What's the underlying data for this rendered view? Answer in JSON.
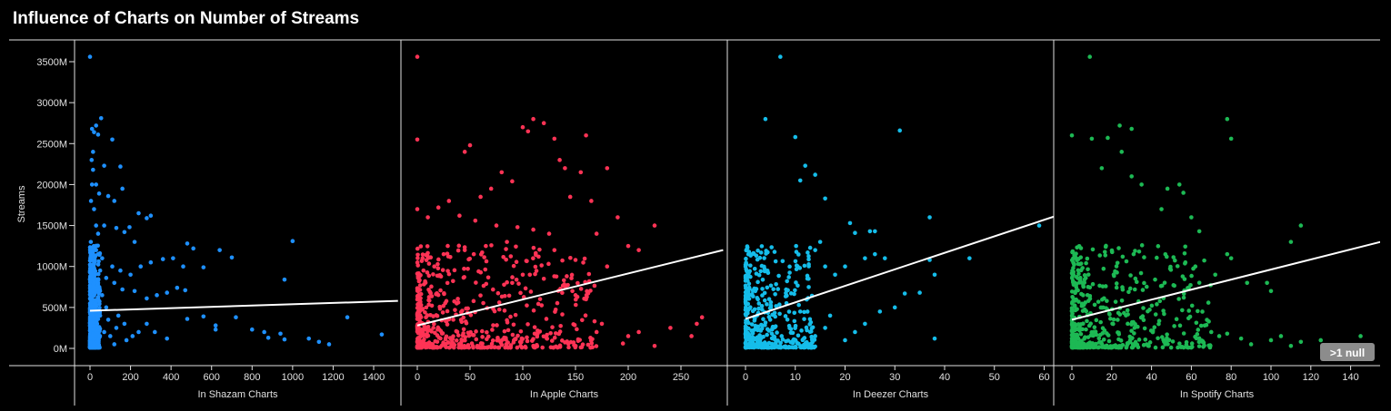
{
  "chart_data": {
    "type": "scatter",
    "title": "Influence of Charts on Number of Streams",
    "ylabel": "Streams",
    "ylim": [
      0,
      3600000000
    ],
    "yticks": [
      0,
      500000000,
      1000000000,
      1500000000,
      2000000000,
      2500000000,
      3000000000,
      3500000000
    ],
    "ytick_labels": [
      "0M",
      "500M",
      "1000M",
      "1500M",
      "2000M",
      "2500M",
      "3000M",
      "3500M"
    ],
    "grid": false,
    "null_badge": ">1 null",
    "panels": [
      {
        "xlabel": "In Shazam Charts",
        "color": "#1e90ff",
        "xticks": [
          0,
          200,
          400,
          600,
          800,
          1000,
          1200,
          1400
        ],
        "trend": {
          "x": [
            0,
            1520
          ],
          "y": [
            460000000,
            580000000
          ]
        },
        "points": [
          [
            0,
            3560
          ],
          [
            10,
            2680
          ],
          [
            20,
            2640
          ],
          [
            30,
            2720
          ],
          [
            40,
            2610
          ],
          [
            55,
            2810
          ],
          [
            110,
            2550
          ],
          [
            70,
            2230
          ],
          [
            150,
            2220
          ],
          [
            15,
            2180
          ],
          [
            30,
            2000
          ],
          [
            45,
            1890
          ],
          [
            90,
            1860
          ],
          [
            160,
            1950
          ],
          [
            120,
            1800
          ],
          [
            240,
            1650
          ],
          [
            300,
            1620
          ],
          [
            280,
            1590
          ],
          [
            195,
            1480
          ],
          [
            130,
            1470
          ],
          [
            170,
            1420
          ],
          [
            70,
            1500
          ],
          [
            40,
            1400
          ],
          [
            220,
            1300
          ],
          [
            480,
            1280
          ],
          [
            1000,
            1310
          ],
          [
            510,
            1220
          ],
          [
            640,
            1200
          ],
          [
            700,
            1110
          ],
          [
            410,
            1100
          ],
          [
            360,
            1090
          ],
          [
            460,
            1000
          ],
          [
            560,
            990
          ],
          [
            300,
            1050
          ],
          [
            250,
            1000
          ],
          [
            200,
            900
          ],
          [
            150,
            950
          ],
          [
            110,
            1000
          ],
          [
            60,
            1100
          ],
          [
            30,
            1200
          ],
          [
            960,
            840
          ],
          [
            430,
            740
          ],
          [
            470,
            710
          ],
          [
            380,
            680
          ],
          [
            330,
            650
          ],
          [
            280,
            610
          ],
          [
            220,
            700
          ],
          [
            160,
            720
          ],
          [
            120,
            800
          ],
          [
            80,
            860
          ],
          [
            50,
            950
          ],
          [
            560,
            390
          ],
          [
            480,
            360
          ],
          [
            620,
            280
          ],
          [
            800,
            230
          ],
          [
            860,
            200
          ],
          [
            940,
            180
          ],
          [
            1080,
            120
          ],
          [
            1130,
            80
          ],
          [
            1180,
            50
          ],
          [
            1270,
            380
          ],
          [
            1440,
            170
          ],
          [
            880,
            130
          ],
          [
            960,
            110
          ],
          [
            620,
            230
          ],
          [
            720,
            380
          ],
          [
            380,
            120
          ],
          [
            320,
            200
          ],
          [
            280,
            300
          ],
          [
            240,
            200
          ],
          [
            210,
            150
          ],
          [
            180,
            100
          ],
          [
            170,
            300
          ],
          [
            140,
            400
          ],
          [
            130,
            250
          ],
          [
            120,
            50
          ],
          [
            100,
            150
          ],
          [
            90,
            350
          ],
          [
            80,
            500
          ],
          [
            70,
            200
          ],
          [
            60,
            650
          ],
          [
            50,
            400
          ],
          [
            40,
            800
          ],
          [
            35,
            300
          ],
          [
            30,
            1500
          ],
          [
            25,
            550
          ],
          [
            20,
            1700
          ],
          [
            15,
            2400
          ],
          [
            12,
            1000
          ],
          [
            10,
            2000
          ],
          [
            8,
            2300
          ],
          [
            5,
            1800
          ],
          [
            4,
            1300
          ],
          [
            3,
            1100
          ],
          [
            2,
            600
          ],
          [
            1,
            250
          ]
        ],
        "dense": {
          "xmax": 50,
          "count": 520
        }
      },
      {
        "xlabel": "In Apple Charts",
        "color": "#ff3355",
        "xticks": [
          0,
          50,
          100,
          150,
          200,
          250
        ],
        "trend": {
          "x": [
            0,
            290
          ],
          "y": [
            280000000,
            1200000000
          ]
        },
        "points": [
          [
            0,
            3560
          ],
          [
            0,
            2550
          ],
          [
            45,
            2400
          ],
          [
            50,
            2480
          ],
          [
            100,
            2700
          ],
          [
            110,
            2800
          ],
          [
            120,
            2750
          ],
          [
            105,
            2650
          ],
          [
            130,
            2560
          ],
          [
            135,
            2300
          ],
          [
            140,
            2200
          ],
          [
            180,
            2200
          ],
          [
            160,
            2600
          ],
          [
            155,
            2150
          ],
          [
            145,
            1850
          ],
          [
            165,
            1800
          ],
          [
            190,
            1600
          ],
          [
            225,
            1500
          ],
          [
            170,
            1400
          ],
          [
            200,
            1250
          ],
          [
            210,
            1200
          ],
          [
            180,
            1000
          ],
          [
            150,
            1080
          ],
          [
            130,
            1200
          ],
          [
            115,
            1120
          ],
          [
            270,
            380
          ],
          [
            265,
            300
          ],
          [
            260,
            150
          ],
          [
            240,
            250
          ],
          [
            225,
            30
          ],
          [
            210,
            200
          ],
          [
            200,
            150
          ],
          [
            195,
            60
          ],
          [
            175,
            300
          ],
          [
            170,
            200
          ],
          [
            80,
            2150
          ],
          [
            90,
            2040
          ],
          [
            70,
            1950
          ],
          [
            60,
            1850
          ],
          [
            30,
            1800
          ],
          [
            20,
            1720
          ],
          [
            0,
            1700
          ],
          [
            10,
            1600
          ],
          [
            40,
            1620
          ],
          [
            55,
            1560
          ],
          [
            75,
            1500
          ],
          [
            95,
            1480
          ],
          [
            110,
            1450
          ],
          [
            125,
            1400
          ],
          [
            85,
            1300
          ],
          [
            65,
            1250
          ],
          [
            45,
            1200
          ],
          [
            25,
            1150
          ],
          [
            5,
            1100
          ],
          [
            100,
            900
          ],
          [
            120,
            850
          ],
          [
            90,
            800
          ],
          [
            140,
            750
          ],
          [
            150,
            650
          ],
          [
            160,
            600
          ]
        ],
        "dense": {
          "xmax": 170,
          "count": 600
        }
      },
      {
        "xlabel": "In Deezer Charts",
        "color": "#15bdea",
        "xticks": [
          0,
          10,
          20,
          30,
          40,
          50,
          60
        ],
        "trend": {
          "x": [
            0,
            62
          ],
          "y": [
            360000000,
            1610000000
          ]
        },
        "points": [
          [
            7,
            3560
          ],
          [
            4,
            2800
          ],
          [
            10,
            2580
          ],
          [
            31,
            2660
          ],
          [
            12,
            2230
          ],
          [
            14,
            2120
          ],
          [
            11,
            2050
          ],
          [
            16,
            1830
          ],
          [
            21,
            1530
          ],
          [
            25,
            1430
          ],
          [
            26,
            1430
          ],
          [
            22,
            1410
          ],
          [
            37,
            1600
          ],
          [
            59,
            1500
          ],
          [
            45,
            1100
          ],
          [
            37,
            1080
          ],
          [
            38,
            900
          ],
          [
            26,
            1150
          ],
          [
            24,
            1100
          ],
          [
            28,
            1100
          ],
          [
            20,
            1000
          ],
          [
            18,
            900
          ],
          [
            16,
            1000
          ],
          [
            15,
            1300
          ],
          [
            14,
            1200
          ],
          [
            38,
            120
          ],
          [
            35,
            680
          ],
          [
            32,
            670
          ],
          [
            30,
            500
          ],
          [
            27,
            450
          ],
          [
            24,
            300
          ],
          [
            22,
            200
          ],
          [
            20,
            100
          ],
          [
            17,
            400
          ],
          [
            16,
            250
          ],
          [
            14,
            150
          ],
          [
            12,
            50
          ],
          [
            11,
            450
          ]
        ],
        "dense": {
          "xmax": 14,
          "count": 420
        }
      },
      {
        "xlabel": "In Spotify Charts",
        "color": "#1db954",
        "xticks": [
          0,
          20,
          40,
          60,
          80,
          100,
          120,
          140
        ],
        "trend": {
          "x": [
            0,
            155
          ],
          "y": [
            350000000,
            1300000000
          ]
        },
        "points": [
          [
            9,
            3560
          ],
          [
            0,
            2600
          ],
          [
            10,
            2560
          ],
          [
            24,
            2720
          ],
          [
            30,
            2680
          ],
          [
            18,
            2570
          ],
          [
            80,
            2560
          ],
          [
            78,
            2800
          ],
          [
            25,
            2400
          ],
          [
            15,
            2200
          ],
          [
            30,
            2100
          ],
          [
            35,
            2000
          ],
          [
            48,
            1950
          ],
          [
            54,
            2000
          ],
          [
            56,
            1900
          ],
          [
            45,
            1700
          ],
          [
            60,
            1600
          ],
          [
            64,
            1430
          ],
          [
            115,
            1500
          ],
          [
            110,
            1300
          ],
          [
            78,
            1150
          ],
          [
            80,
            1100
          ],
          [
            57,
            1050
          ],
          [
            62,
            1000
          ],
          [
            145,
            150
          ],
          [
            125,
            100
          ],
          [
            115,
            80
          ],
          [
            110,
            30
          ],
          [
            105,
            150
          ],
          [
            100,
            100
          ],
          [
            90,
            50
          ],
          [
            85,
            120
          ],
          [
            78,
            180
          ],
          [
            74,
            150
          ],
          [
            70,
            200
          ],
          [
            100,
            700
          ],
          [
            98,
            800
          ],
          [
            88,
            800
          ],
          [
            72,
            900
          ]
        ],
        "dense": {
          "xmax": 70,
          "count": 520
        }
      }
    ]
  }
}
